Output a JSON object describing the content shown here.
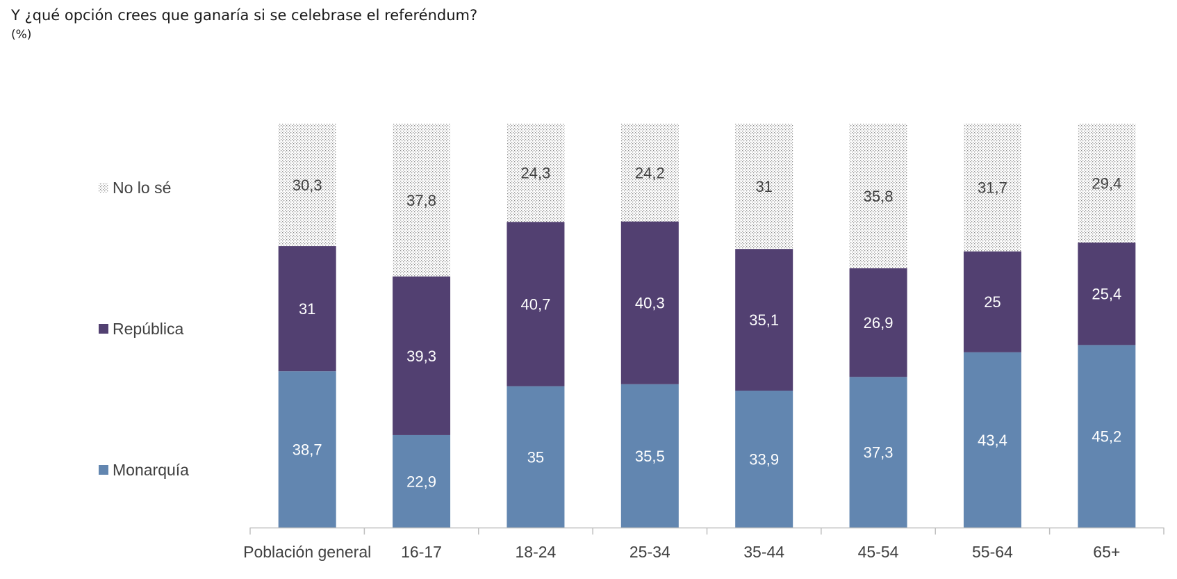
{
  "title": "Y ¿qué opción crees que ganaría si se celebrase el referéndum?",
  "subtitle": "(%)",
  "colors": {
    "monarquia": "#6286b0",
    "republica": "#524071",
    "nolose_dots": "#8a8a8a",
    "axis": "#bfbfbf",
    "label_light": "#ffffff",
    "label_dark": "#404040"
  },
  "chart_data": {
    "type": "bar",
    "stacked": true,
    "categories": [
      "Población general",
      "16-17",
      "18-24",
      "25-34",
      "35-44",
      "45-54",
      "55-64",
      "65+"
    ],
    "series": [
      {
        "name": "Monarquía",
        "values": [
          38.7,
          22.9,
          35,
          35.5,
          33.9,
          37.3,
          43.4,
          45.2
        ]
      },
      {
        "name": "República",
        "values": [
          31,
          39.3,
          40.7,
          40.3,
          35.1,
          26.9,
          25,
          25.4
        ]
      },
      {
        "name": "No lo sé",
        "values": [
          30.3,
          37.8,
          24.3,
          24.2,
          31,
          35.8,
          31.7,
          29.4
        ]
      }
    ],
    "value_labels": [
      [
        "38,7",
        "22,9",
        "35",
        "35,5",
        "33,9",
        "37,3",
        "43,4",
        "45,2"
      ],
      [
        "31",
        "39,3",
        "40,7",
        "40,3",
        "35,1",
        "26,9",
        "25",
        "25,4"
      ],
      [
        "30,3",
        "37,8",
        "24,3",
        "24,2",
        "31",
        "35,8",
        "31,7",
        "29,4"
      ]
    ],
    "ylim": [
      0,
      100
    ],
    "grid": false,
    "legend_position": "left"
  }
}
